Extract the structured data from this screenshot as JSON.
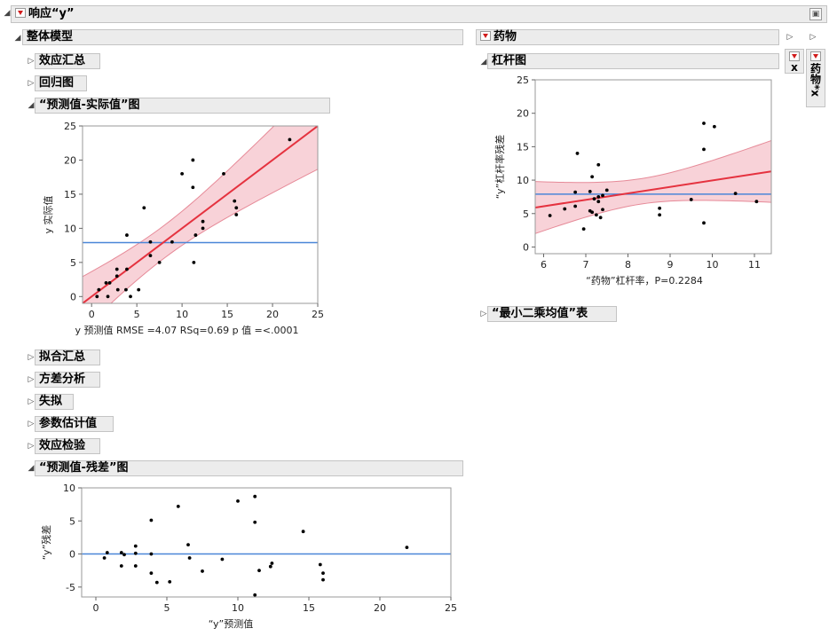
{
  "report": {
    "title": "响应“y”"
  },
  "whole_model": {
    "title": "整体模型",
    "outlines": {
      "effect_summary": "效应汇总",
      "regression_plot": "回归图",
      "actual_by_predicted": "“预测值-实际值”图",
      "fit_summary": "拟合汇总",
      "anova": "方差分析",
      "lack_of_fit": "失拟",
      "parameter_estimates": "参数估计值",
      "effect_tests": "效应检验",
      "residual_by_predicted": "“预测值-残差”图"
    }
  },
  "drug": {
    "title": "药物",
    "leverage_plot": "杠杆图",
    "lsmeans_table": "“最小二乘均值”表"
  },
  "side_tabs": {
    "x": "x",
    "drug_x": "药物*x"
  },
  "chart_data": [
    {
      "type": "scatter",
      "title": "“预测值-实际值”图",
      "xlabel": "y 预测值 RMSE =4.07 RSq=0.69 p 值 =<.0001",
      "ylabel": "y 实际值",
      "xlim": [
        -1,
        25
      ],
      "ylim": [
        -1,
        25
      ],
      "xticks": [
        "0",
        "5",
        "10",
        "15",
        "20",
        "25"
      ],
      "yticks": [
        "0",
        "5",
        "10",
        "15",
        "20",
        "25"
      ],
      "mean_line": 7.9,
      "fit_line": [
        [
          -1,
          -1
        ],
        [
          25,
          25
        ]
      ],
      "points": [
        [
          0.6,
          0
        ],
        [
          0.8,
          1
        ],
        [
          1.6,
          2
        ],
        [
          2.0,
          2
        ],
        [
          2.8,
          3
        ],
        [
          2.8,
          4
        ],
        [
          1.8,
          0
        ],
        [
          2.9,
          1
        ],
        [
          3.8,
          1
        ],
        [
          3.9,
          4
        ],
        [
          3.9,
          9
        ],
        [
          4.3,
          0
        ],
        [
          5.2,
          1
        ],
        [
          5.8,
          13
        ],
        [
          6.5,
          8
        ],
        [
          6.5,
          6
        ],
        [
          7.5,
          5
        ],
        [
          8.9,
          8
        ],
        [
          10.0,
          18
        ],
        [
          11.2,
          20
        ],
        [
          11.2,
          16
        ],
        [
          11.3,
          5
        ],
        [
          11.5,
          9
        ],
        [
          12.3,
          11
        ],
        [
          12.3,
          10
        ],
        [
          14.6,
          18
        ],
        [
          15.8,
          14
        ],
        [
          16.0,
          13
        ],
        [
          16.0,
          12
        ],
        [
          21.9,
          23
        ]
      ]
    },
    {
      "type": "scatter",
      "title": "杠杆图",
      "xlabel": "“药物”杠杆率，P=0.2284",
      "ylabel": "“y”杠杆率残差",
      "xlim": [
        5.8,
        11.4
      ],
      "ylim": [
        -1,
        25
      ],
      "xticks": [
        "6",
        "7",
        "8",
        "9",
        "10",
        "11"
      ],
      "yticks": [
        "0",
        "5",
        "10",
        "15",
        "20",
        "25"
      ],
      "mean_line": 7.9,
      "fit_line": [
        [
          5.8,
          5.9
        ],
        [
          11.4,
          11.3
        ]
      ],
      "points": [
        [
          6.15,
          4.7
        ],
        [
          6.5,
          5.7
        ],
        [
          6.75,
          8.2
        ],
        [
          6.75,
          6.1
        ],
        [
          6.8,
          14.0
        ],
        [
          6.95,
          2.7
        ],
        [
          7.1,
          8.3
        ],
        [
          7.1,
          5.4
        ],
        [
          7.15,
          10.5
        ],
        [
          7.15,
          5.2
        ],
        [
          7.2,
          7.2
        ],
        [
          7.25,
          4.8
        ],
        [
          7.3,
          12.3
        ],
        [
          7.3,
          7.5
        ],
        [
          7.35,
          4.4
        ],
        [
          7.4,
          7.7
        ],
        [
          7.4,
          5.6
        ],
        [
          7.5,
          8.5
        ],
        [
          8.75,
          5.8
        ],
        [
          8.75,
          4.8
        ],
        [
          9.5,
          7.1
        ],
        [
          9.8,
          18.5
        ],
        [
          9.8,
          14.6
        ],
        [
          9.8,
          3.6
        ],
        [
          10.05,
          18.0
        ],
        [
          10.55,
          8.0
        ],
        [
          11.05,
          6.8
        ],
        [
          7.3,
          6.8
        ]
      ]
    },
    {
      "type": "scatter",
      "title": "“预测值-残差”图",
      "xlabel": "“y”预测值",
      "ylabel": "“y”残差",
      "xlim": [
        -1,
        25
      ],
      "ylim": [
        -6.5,
        10
      ],
      "xticks": [
        "0",
        "5",
        "10",
        "15",
        "20",
        "25"
      ],
      "yticks": [
        "-5",
        "0",
        "5",
        "10"
      ],
      "zero_line": 0,
      "points": [
        [
          0.6,
          -0.6
        ],
        [
          0.8,
          0.2
        ],
        [
          1.8,
          0.2
        ],
        [
          1.8,
          -1.8
        ],
        [
          2.0,
          -0.1
        ],
        [
          2.8,
          1.2
        ],
        [
          2.8,
          0.1
        ],
        [
          2.8,
          -1.8
        ],
        [
          3.9,
          5.1
        ],
        [
          3.9,
          0.0
        ],
        [
          3.9,
          -2.9
        ],
        [
          4.3,
          -4.3
        ],
        [
          5.2,
          -4.2
        ],
        [
          5.8,
          7.2
        ],
        [
          6.5,
          1.4
        ],
        [
          6.6,
          -0.6
        ],
        [
          7.5,
          -2.6
        ],
        [
          8.9,
          -0.8
        ],
        [
          10.0,
          8.0
        ],
        [
          11.2,
          8.7
        ],
        [
          11.2,
          4.8
        ],
        [
          11.2,
          -6.2
        ],
        [
          11.5,
          -2.5
        ],
        [
          12.3,
          -1.9
        ],
        [
          12.4,
          -1.4
        ],
        [
          14.6,
          3.4
        ],
        [
          15.8,
          -1.6
        ],
        [
          16.0,
          -2.9
        ],
        [
          16.0,
          -3.9
        ],
        [
          21.9,
          1.0
        ]
      ]
    }
  ]
}
